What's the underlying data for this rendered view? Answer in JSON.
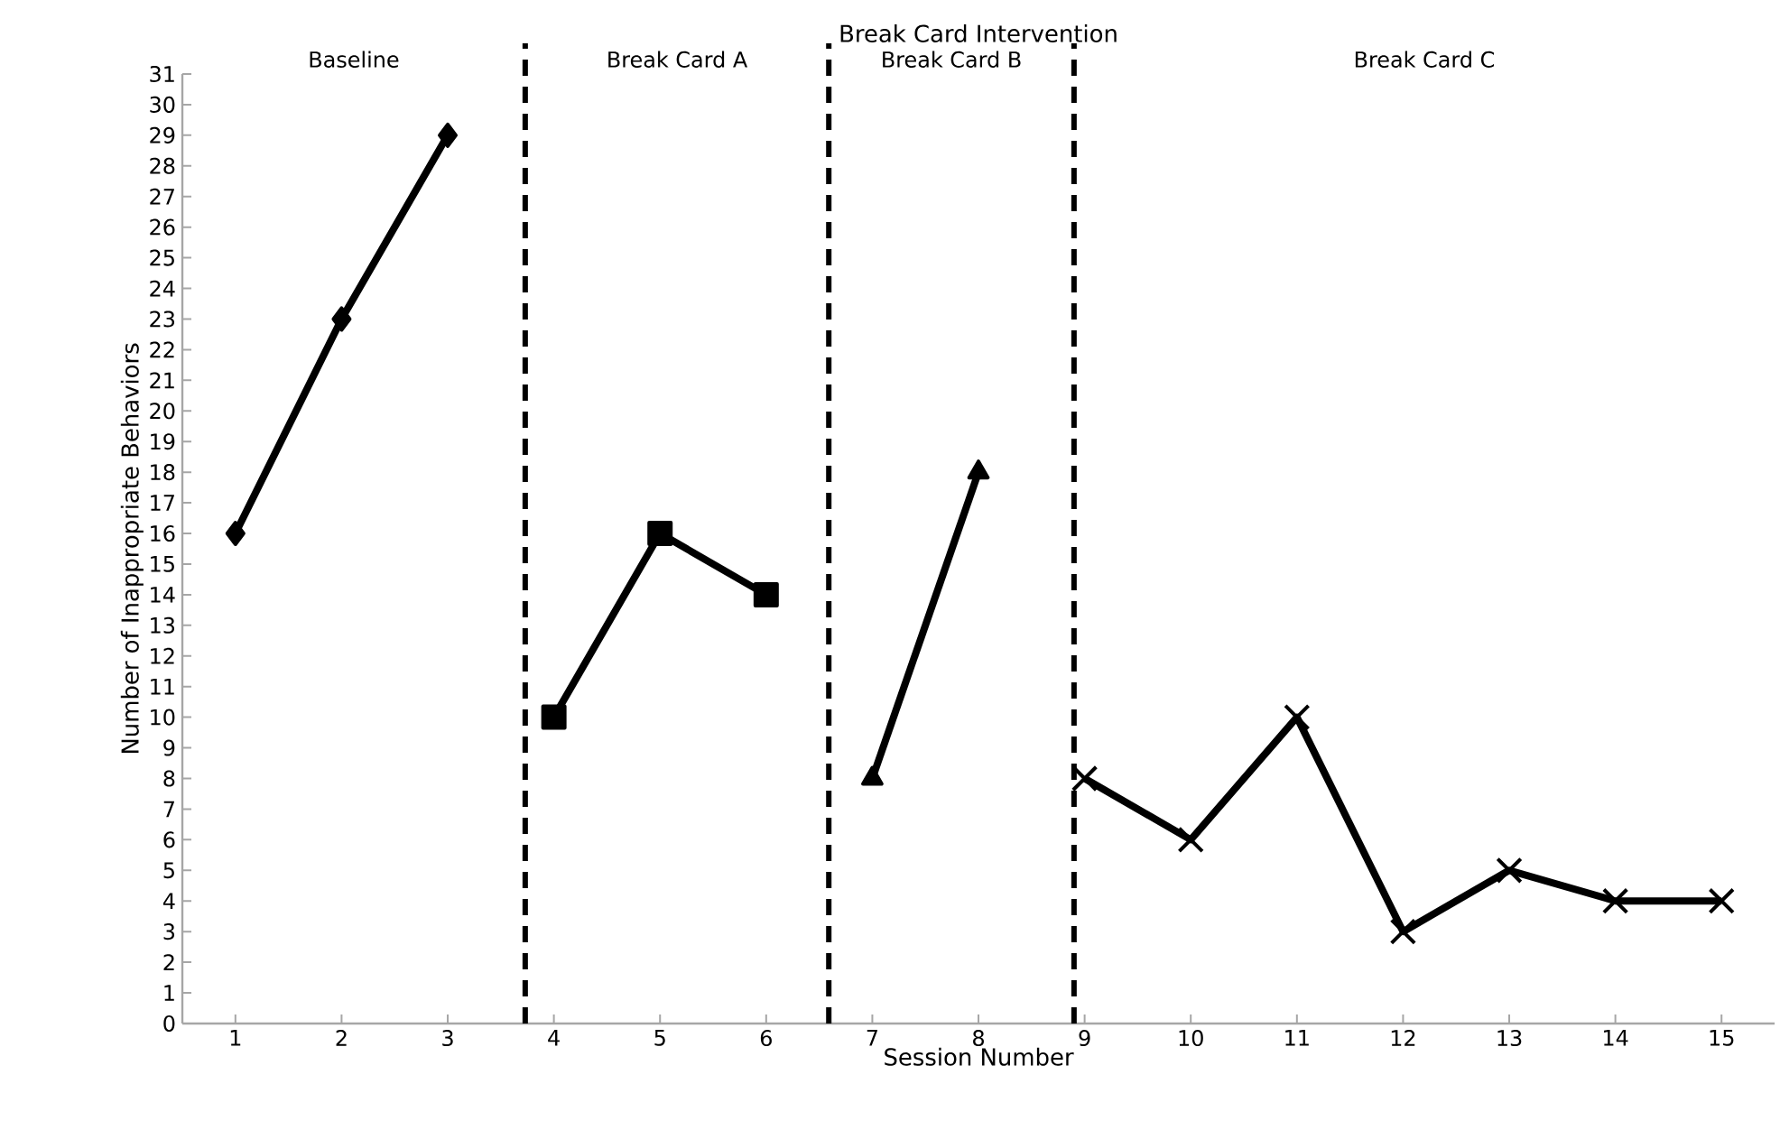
{
  "chart_data": {
    "type": "line",
    "title": "Break Card Intervention",
    "xlabel": "Session Number",
    "ylabel": "Number of Inappropriate Behaviors",
    "x": [
      1,
      2,
      3,
      4,
      5,
      6,
      7,
      8,
      9,
      10,
      11,
      12,
      13,
      14,
      15
    ],
    "series": [
      {
        "color": "#000000",
        "marker": "diamond",
        "values": [
          16,
          23,
          29,
          null,
          null,
          null,
          null,
          null,
          null,
          null,
          null,
          null,
          null,
          null,
          null
        ]
      },
      {
        "color": "#000000",
        "marker": "square",
        "values": [
          null,
          null,
          null,
          10,
          16,
          14,
          null,
          null,
          null,
          null,
          null,
          null,
          null,
          null,
          null
        ]
      },
      {
        "color": "#000000",
        "marker": "triangle",
        "values": [
          null,
          null,
          null,
          null,
          null,
          null,
          8,
          18,
          null,
          null,
          null,
          null,
          null,
          null,
          null
        ]
      },
      {
        "color": "#000000",
        "marker": "cross",
        "values": [
          null,
          null,
          null,
          null,
          null,
          null,
          null,
          null,
          8,
          6,
          10,
          3,
          5,
          4,
          4
        ]
      }
    ],
    "xlim": [
      0.5,
      15.5
    ],
    "xticks": [
      1,
      2,
      3,
      4,
      5,
      6,
      7,
      8,
      9,
      10,
      11,
      12,
      13,
      14,
      15
    ],
    "ylim": [
      0,
      31
    ],
    "yticks": [
      0,
      1,
      2,
      3,
      4,
      5,
      6,
      7,
      8,
      9,
      10,
      11,
      12,
      13,
      14,
      15,
      16,
      17,
      18,
      19,
      20,
      21,
      22,
      23,
      24,
      25,
      26,
      27,
      28,
      29,
      30,
      31
    ],
    "line_style": "solid",
    "ref_lines": [
      {
        "axis": "x",
        "value": 3.73,
        "color": "#000000",
        "line_style": "dashed"
      },
      {
        "axis": "x",
        "value": 6.59,
        "color": "#000000",
        "line_style": "dashed"
      },
      {
        "axis": "x",
        "value": 8.9,
        "color": "#000000",
        "line_style": "dashed"
      }
    ],
    "annotations": [
      "Baseline",
      "Break Card A",
      "Break Card  B",
      "Break Card C"
    ]
  }
}
